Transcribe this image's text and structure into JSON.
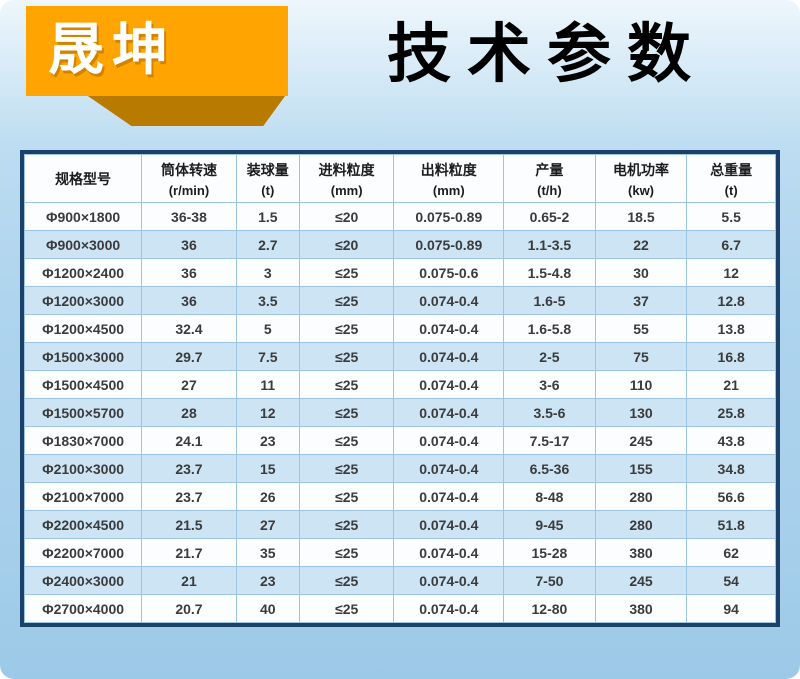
{
  "brand": {
    "name": "晟坤"
  },
  "title": "技术参数",
  "table": {
    "columns": [
      {
        "label": "规格型号",
        "unit": ""
      },
      {
        "label": "筒体转速",
        "unit": "(r/min)"
      },
      {
        "label": "装球量",
        "unit": "(t)"
      },
      {
        "label": "进料粒度",
        "unit": "(mm)"
      },
      {
        "label": "出料粒度",
        "unit": "(mm)"
      },
      {
        "label": "产量",
        "unit": "(t/h)"
      },
      {
        "label": "电机功率",
        "unit": "(kw)"
      },
      {
        "label": "总重量",
        "unit": "(t)"
      }
    ],
    "rows": [
      [
        "Φ900×1800",
        "36-38",
        "1.5",
        "≤20",
        "0.075-0.89",
        "0.65-2",
        "18.5",
        "5.5"
      ],
      [
        "Φ900×3000",
        "36",
        "2.7",
        "≤20",
        "0.075-0.89",
        "1.1-3.5",
        "22",
        "6.7"
      ],
      [
        "Φ1200×2400",
        "36",
        "3",
        "≤25",
        "0.075-0.6",
        "1.5-4.8",
        "30",
        "12"
      ],
      [
        "Φ1200×3000",
        "36",
        "3.5",
        "≤25",
        "0.074-0.4",
        "1.6-5",
        "37",
        "12.8"
      ],
      [
        "Φ1200×4500",
        "32.4",
        "5",
        "≤25",
        "0.074-0.4",
        "1.6-5.8",
        "55",
        "13.8"
      ],
      [
        "Φ1500×3000",
        "29.7",
        "7.5",
        "≤25",
        "0.074-0.4",
        "2-5",
        "75",
        "16.8"
      ],
      [
        "Φ1500×4500",
        "27",
        "11",
        "≤25",
        "0.074-0.4",
        "3-6",
        "110",
        "21"
      ],
      [
        "Φ1500×5700",
        "28",
        "12",
        "≤25",
        "0.074-0.4",
        "3.5-6",
        "130",
        "25.8"
      ],
      [
        "Φ1830×7000",
        "24.1",
        "23",
        "≤25",
        "0.074-0.4",
        "7.5-17",
        "245",
        "43.8"
      ],
      [
        "Φ2100×3000",
        "23.7",
        "15",
        "≤25",
        "0.074-0.4",
        "6.5-36",
        "155",
        "34.8"
      ],
      [
        "Φ2100×7000",
        "23.7",
        "26",
        "≤25",
        "0.074-0.4",
        "8-48",
        "280",
        "56.6"
      ],
      [
        "Φ2200×4500",
        "21.5",
        "27",
        "≤25",
        "0.074-0.4",
        "9-45",
        "280",
        "51.8"
      ],
      [
        "Φ2200×7000",
        "21.7",
        "35",
        "≤25",
        "0.074-0.4",
        "15-28",
        "380",
        "62"
      ],
      [
        "Φ2400×3000",
        "21",
        "23",
        "≤25",
        "0.074-0.4",
        "7-50",
        "245",
        "54"
      ],
      [
        "Φ2700×4000",
        "20.7",
        "40",
        "≤25",
        "0.074-0.4",
        "12-80",
        "380",
        "94"
      ]
    ]
  },
  "colors": {
    "logo_orange": "#ffa400",
    "logo_shadow": "#b97a00",
    "brand_text_color": "#ffffff",
    "title_color": "#000000",
    "table_border": "#1c4168",
    "grid_line": "#9cc4e4",
    "row_base": "#fcfdff",
    "row_alt": "#cde4f4",
    "background_top": "#eef6fc",
    "background_bottom": "#9cc9e7"
  }
}
